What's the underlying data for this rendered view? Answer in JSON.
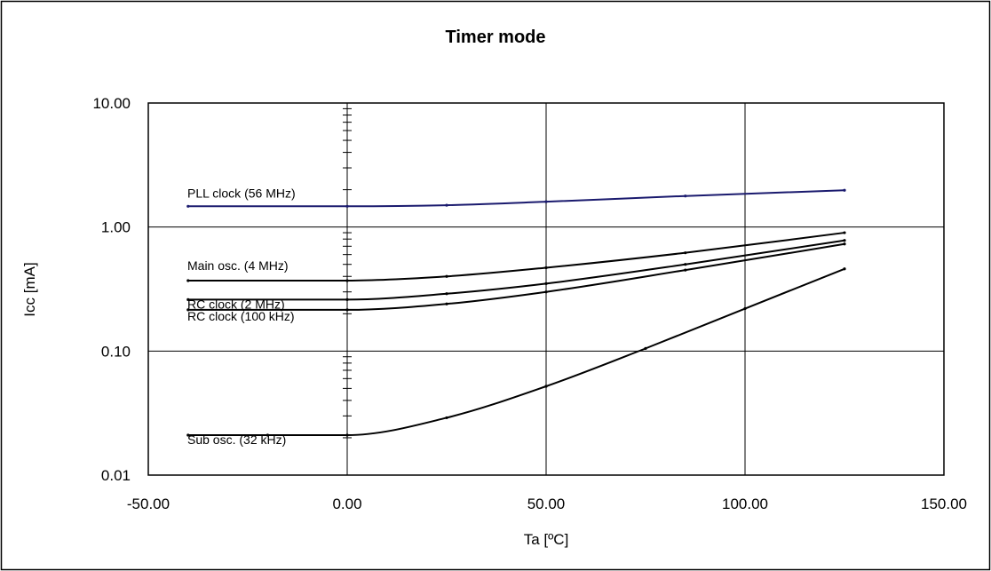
{
  "chart_data": {
    "type": "line",
    "title": "Timer mode",
    "xlabel": "Ta [ºC]",
    "ylabel": "Icc [mA]",
    "xlim": [
      -50,
      150
    ],
    "ylim": [
      0.01,
      10
    ],
    "yscale": "log",
    "grid": true,
    "x_ticks": [
      "-50.00",
      "0.00",
      "50.00",
      "100.00",
      "150.00"
    ],
    "y_ticks": [
      "10.00",
      "1.00",
      "0.10",
      "0.01"
    ],
    "series": [
      {
        "name": "PLL clock (56 MHz)",
        "color": "#1a1a6e",
        "x": [
          -40,
          0,
          25,
          50,
          85,
          125
        ],
        "values": [
          1.47,
          1.47,
          1.5,
          1.6,
          1.78,
          1.98
        ]
      },
      {
        "name": "Main osc. (4 MHz)",
        "color": "#000000",
        "x": [
          -40,
          0,
          25,
          50,
          85,
          125
        ],
        "values": [
          0.37,
          0.37,
          0.4,
          0.47,
          0.62,
          0.9
        ]
      },
      {
        "name": "RC clock (2 MHz)",
        "color": "#000000",
        "x": [
          -40,
          0,
          25,
          50,
          85,
          125
        ],
        "values": [
          0.26,
          0.26,
          0.29,
          0.35,
          0.5,
          0.78
        ]
      },
      {
        "name": "RC clock (100 kHz)",
        "color": "#000000",
        "x": [
          -40,
          0,
          25,
          50,
          85,
          125
        ],
        "values": [
          0.215,
          0.215,
          0.24,
          0.3,
          0.45,
          0.73
        ]
      },
      {
        "name": "Sub osc. (32 kHz)",
        "color": "#000000",
        "x": [
          -40,
          -20,
          0,
          25,
          50,
          75,
          100,
          125
        ],
        "values": [
          0.021,
          0.021,
          0.021,
          0.029,
          0.052,
          0.105,
          0.22,
          0.46
        ]
      }
    ]
  }
}
